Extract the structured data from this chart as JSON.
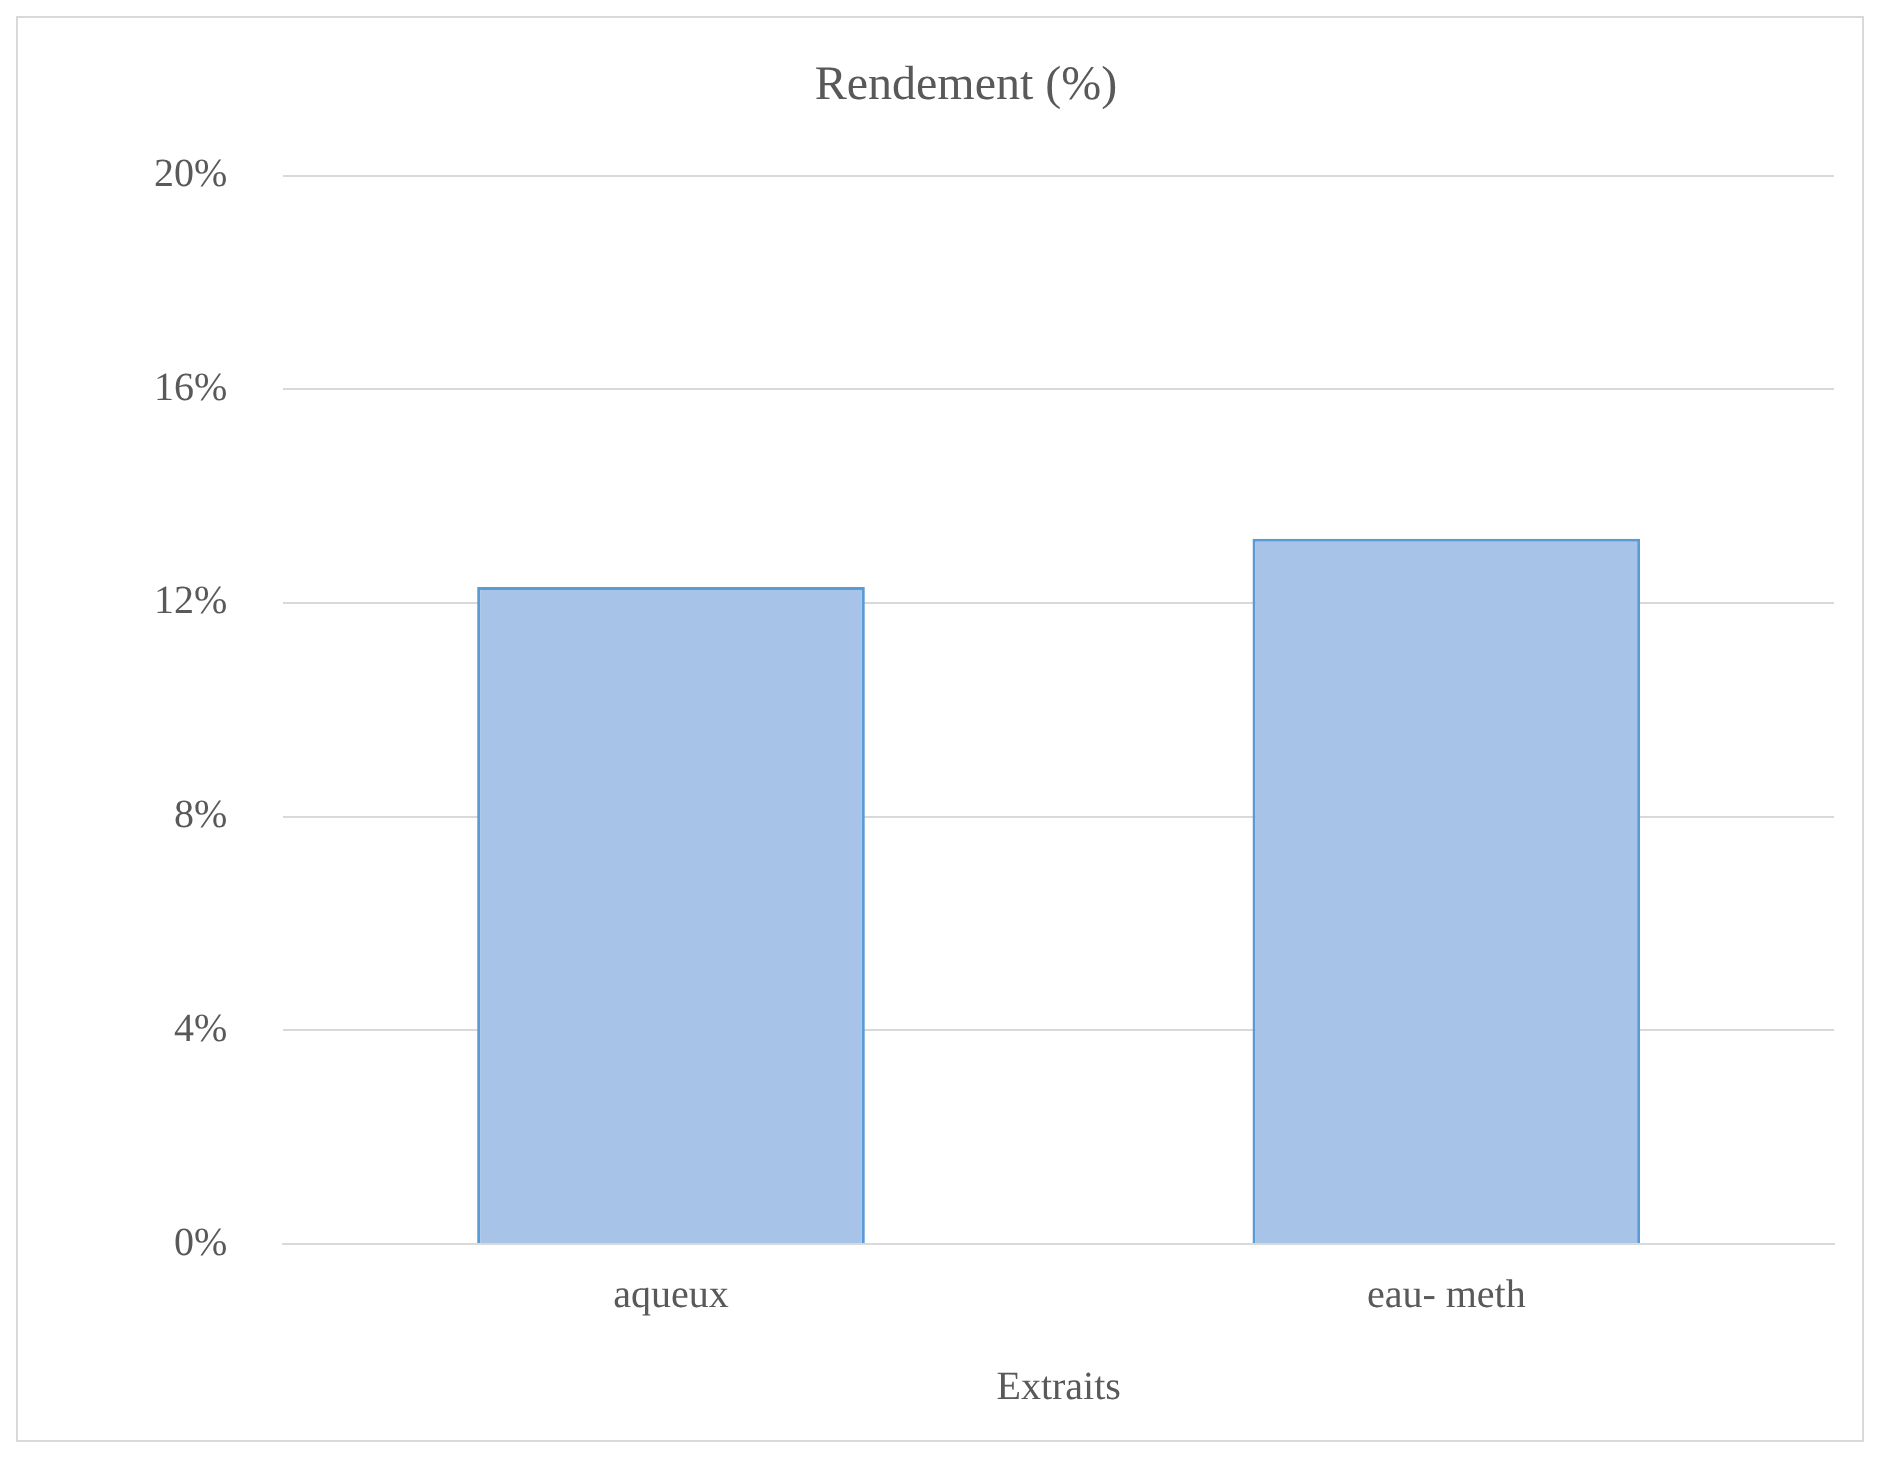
{
  "chart_data": {
    "type": "bar",
    "title": "Rendement (%)",
    "xlabel": "Extraits",
    "categories": [
      "aqueux",
      "eau- meth"
    ],
    "values": [
      12.3,
      13.2
    ],
    "color": "#a7c3e7",
    "ylim": [
      0,
      20
    ],
    "yticks": [
      {
        "value": 0,
        "label": "0%"
      },
      {
        "value": 4,
        "label": "4%"
      },
      {
        "value": 8,
        "label": "8%"
      },
      {
        "value": 12,
        "label": "12%"
      },
      {
        "value": 16,
        "label": "16%"
      },
      {
        "value": 20,
        "label": "20%"
      }
    ],
    "grid": "y",
    "legend": false
  }
}
